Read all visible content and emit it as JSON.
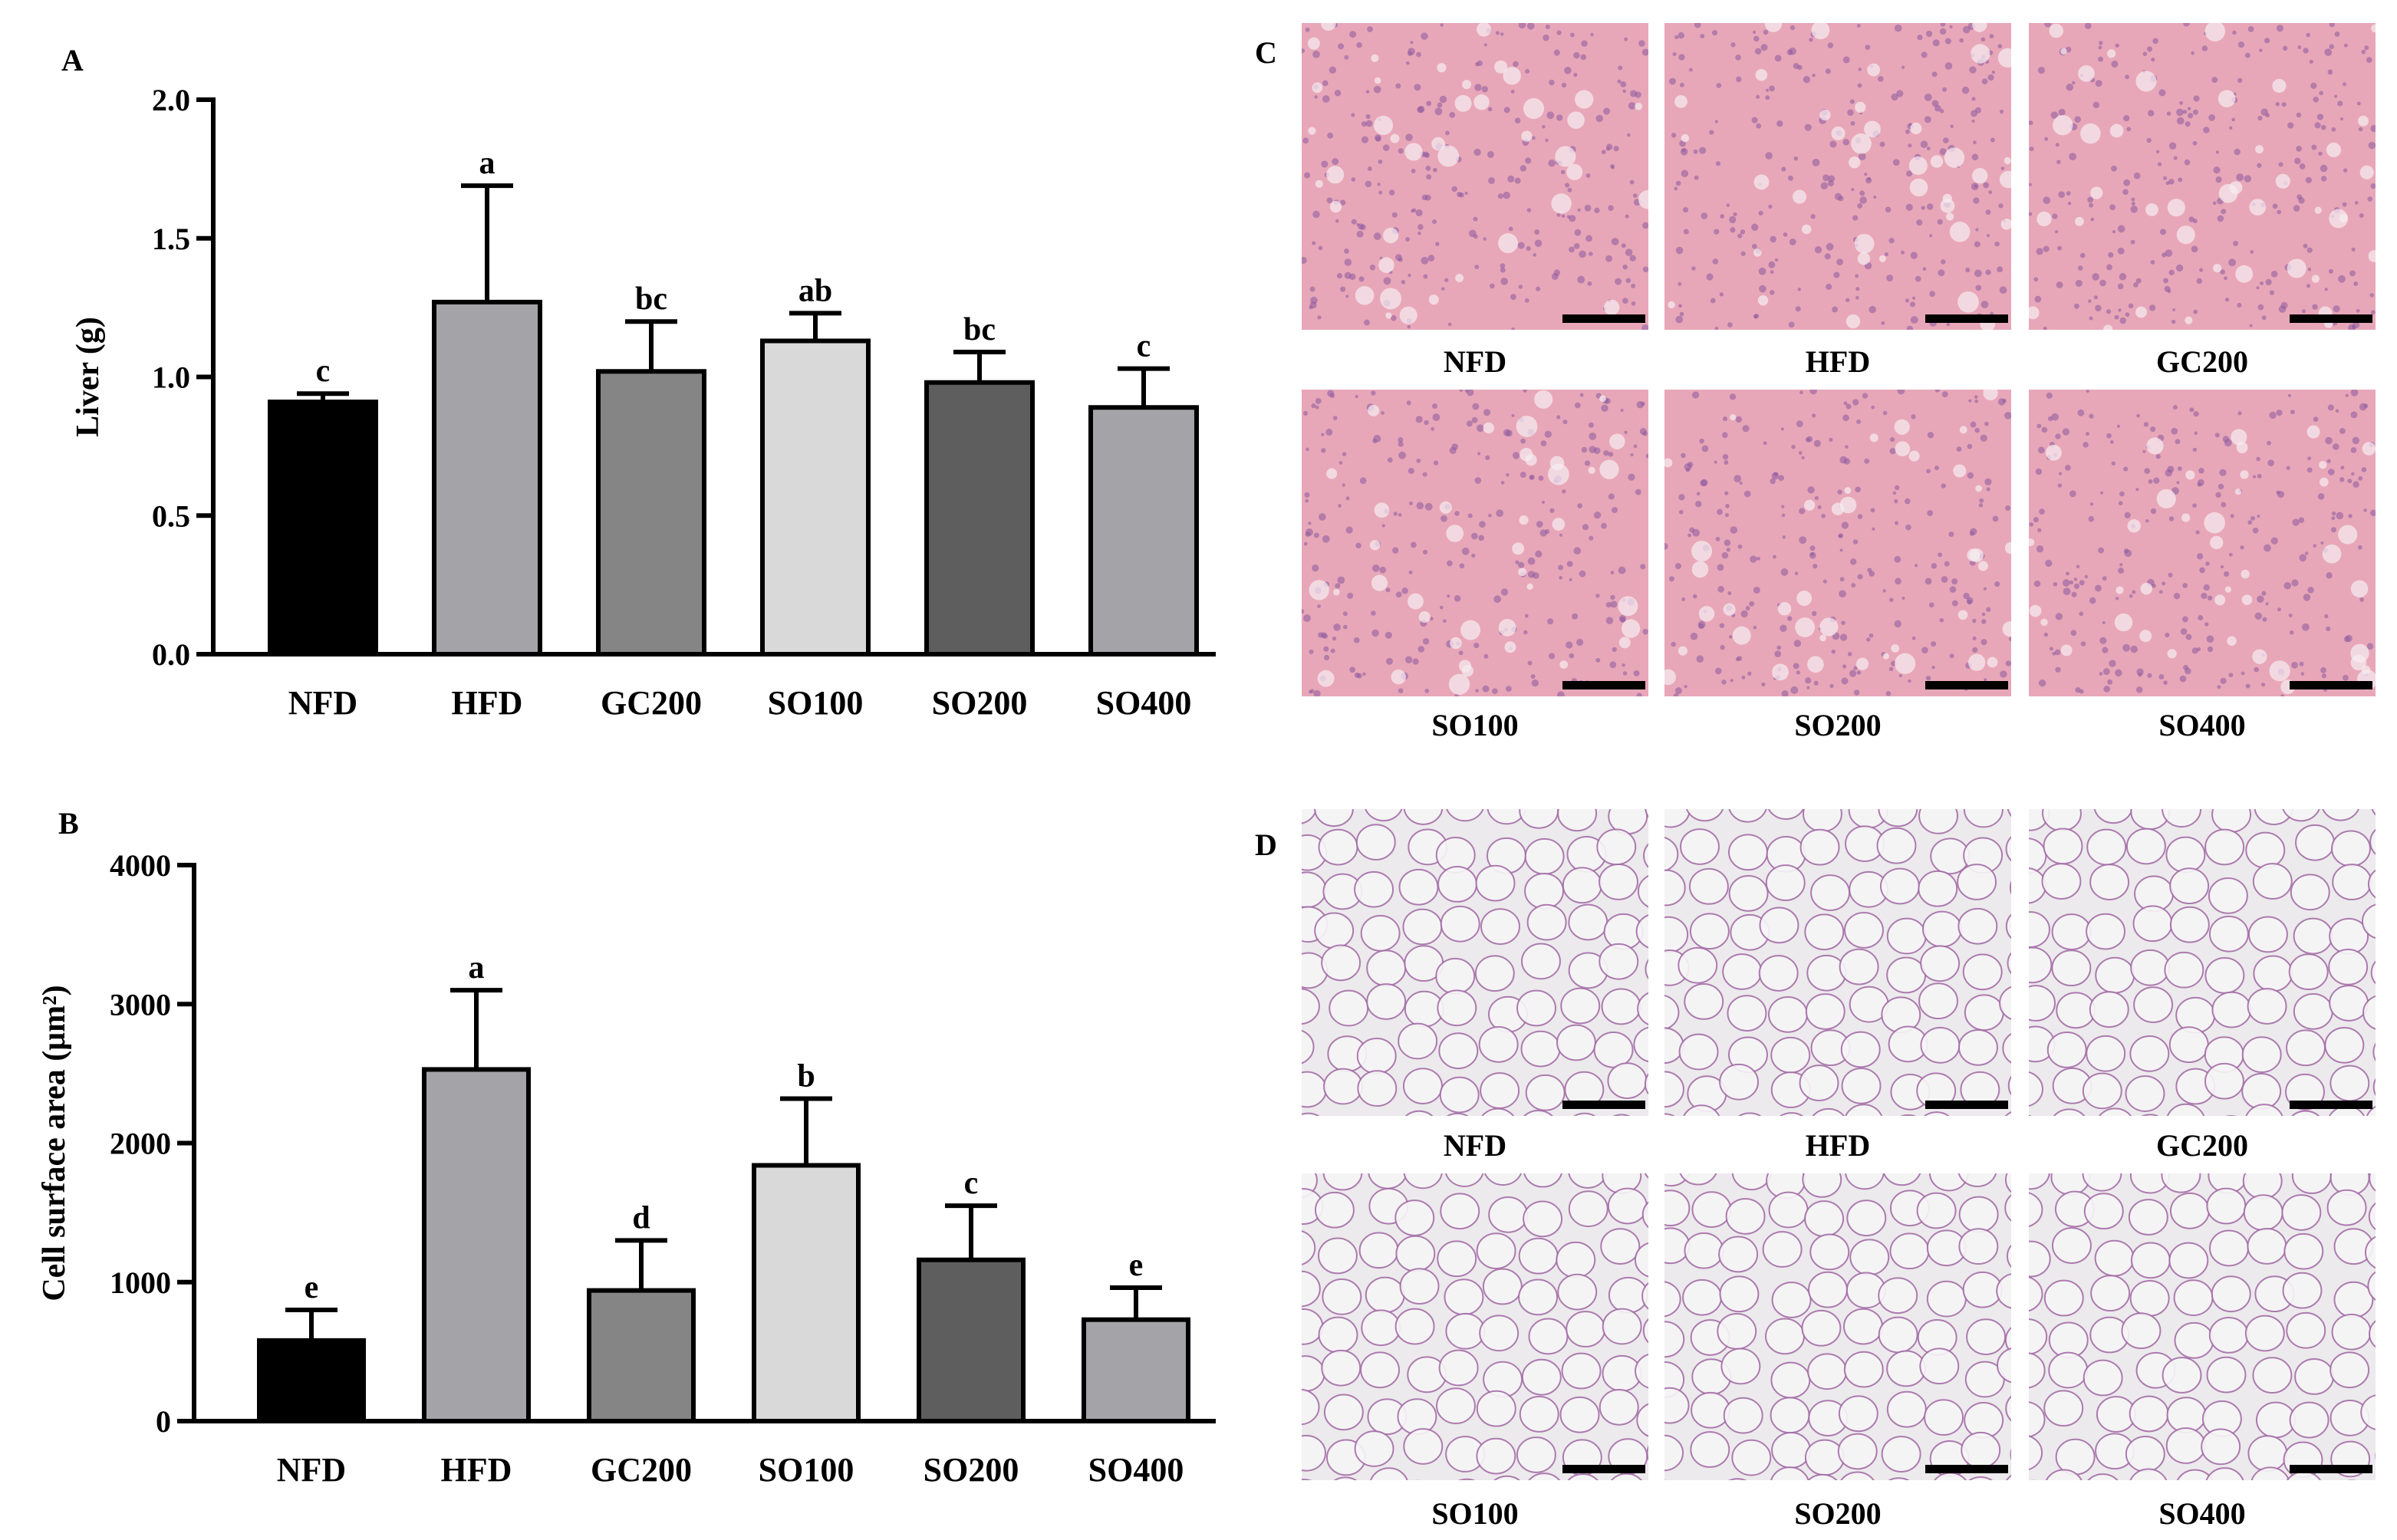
{
  "panels": {
    "a": "A",
    "b": "B",
    "c": "C",
    "d": "D"
  },
  "chart_data": [
    {
      "type": "bar",
      "panel": "A",
      "ylabel": "Liver (g)",
      "ylim": [
        0,
        2.0
      ],
      "yticks": [
        "0.0",
        "0.5",
        "1.0",
        "1.5",
        "2.0"
      ],
      "ytick_values": [
        0,
        0.5,
        1.0,
        1.5,
        2.0
      ],
      "categories": [
        "NFD",
        "HFD",
        "GC200",
        "SO100",
        "SO200",
        "SO400"
      ],
      "values": [
        0.91,
        1.27,
        1.02,
        1.13,
        0.98,
        0.89
      ],
      "errors": [
        0.03,
        0.42,
        0.18,
        0.1,
        0.11,
        0.14
      ],
      "letters": [
        "c",
        "a",
        "bc",
        "ab",
        "bc",
        "c"
      ],
      "colors": [
        "#000000",
        "#a3a3a8",
        "#858585",
        "#d9d9d9",
        "#5e5e5e",
        "#a3a3a8"
      ]
    },
    {
      "type": "bar",
      "panel": "B",
      "ylabel": "Cell surface area (μm²)",
      "ylim": [
        0,
        4000
      ],
      "yticks": [
        "0",
        "1000",
        "2000",
        "3000",
        "4000"
      ],
      "ytick_values": [
        0,
        1000,
        2000,
        3000,
        4000
      ],
      "categories": [
        "NFD",
        "HFD",
        "GC200",
        "SO100",
        "SO200",
        "SO400"
      ],
      "values": [
        580,
        2530,
        940,
        1840,
        1160,
        730
      ],
      "errors": [
        220,
        570,
        360,
        480,
        390,
        230
      ],
      "letters": [
        "e",
        "a",
        "d",
        "b",
        "c",
        "e"
      ],
      "colors": [
        "#000000",
        "#a3a3a8",
        "#858585",
        "#d9d9d9",
        "#5e5e5e",
        "#a3a3a8"
      ]
    }
  ],
  "liver_images": {
    "labels": [
      "NFD",
      "HFD",
      "GC200",
      "SO100",
      "SO200",
      "SO400"
    ],
    "base_color": "#e8a7b8",
    "nuclei_color": "#8a5a9e"
  },
  "adipose_images": {
    "labels": [
      "NFD",
      "HFD",
      "GC200",
      "SO100",
      "SO200",
      "SO400"
    ],
    "base_color": "#eceaec",
    "membrane_color": "#a56fa8"
  }
}
